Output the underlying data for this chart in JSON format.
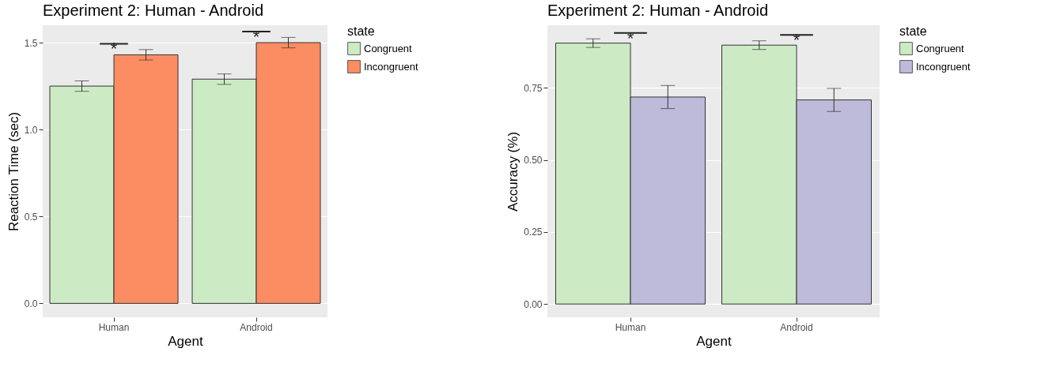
{
  "chart_data": [
    {
      "type": "bar",
      "title": "Experiment 2: Human - Android",
      "xlabel": "Agent",
      "ylabel": "Reaction Time (sec)",
      "legend_title": "state",
      "categories": [
        "Human",
        "Android"
      ],
      "series": [
        {
          "name": "Congruent",
          "color": "#ccebc5",
          "values": [
            1.25,
            1.29
          ],
          "errors": [
            0.03,
            0.03
          ]
        },
        {
          "name": "Incongruent",
          "color": "#fc8d62",
          "values": [
            1.43,
            1.5
          ],
          "errors": [
            0.03,
            0.03
          ]
        }
      ],
      "ylim": [
        -0.08,
        1.6
      ],
      "yticks": [
        {
          "value": 0,
          "label": "0.0"
        },
        {
          "value": 0.5,
          "label": "0.5"
        },
        {
          "value": 1,
          "label": "1.0"
        },
        {
          "value": 1.5,
          "label": "1.5"
        }
      ],
      "grid": true,
      "legend": "right",
      "annotations": [
        "*",
        "*"
      ]
    },
    {
      "type": "bar",
      "title": "Experiment 2: Human - Android",
      "xlabel": "Agent",
      "ylabel": "Accuracy (%)",
      "legend_title": "state",
      "categories": [
        "Human",
        "Android"
      ],
      "series": [
        {
          "name": "Congruent",
          "color": "#ccebc5",
          "values": [
            0.905,
            0.898
          ],
          "errors": [
            0.015,
            0.015
          ]
        },
        {
          "name": "Incongruent",
          "color": "#bebada",
          "values": [
            0.718,
            0.708
          ],
          "errors": [
            0.04,
            0.04
          ]
        }
      ],
      "ylim": [
        -0.046,
        0.967
      ],
      "yticks": [
        {
          "value": 0,
          "label": "0.00"
        },
        {
          "value": 0.25,
          "label": "0.25"
        },
        {
          "value": 0.5,
          "label": "0.50"
        },
        {
          "value": 0.75,
          "label": "0.75"
        }
      ],
      "grid": true,
      "legend": "right",
      "annotations": [
        "*",
        "*"
      ]
    }
  ]
}
